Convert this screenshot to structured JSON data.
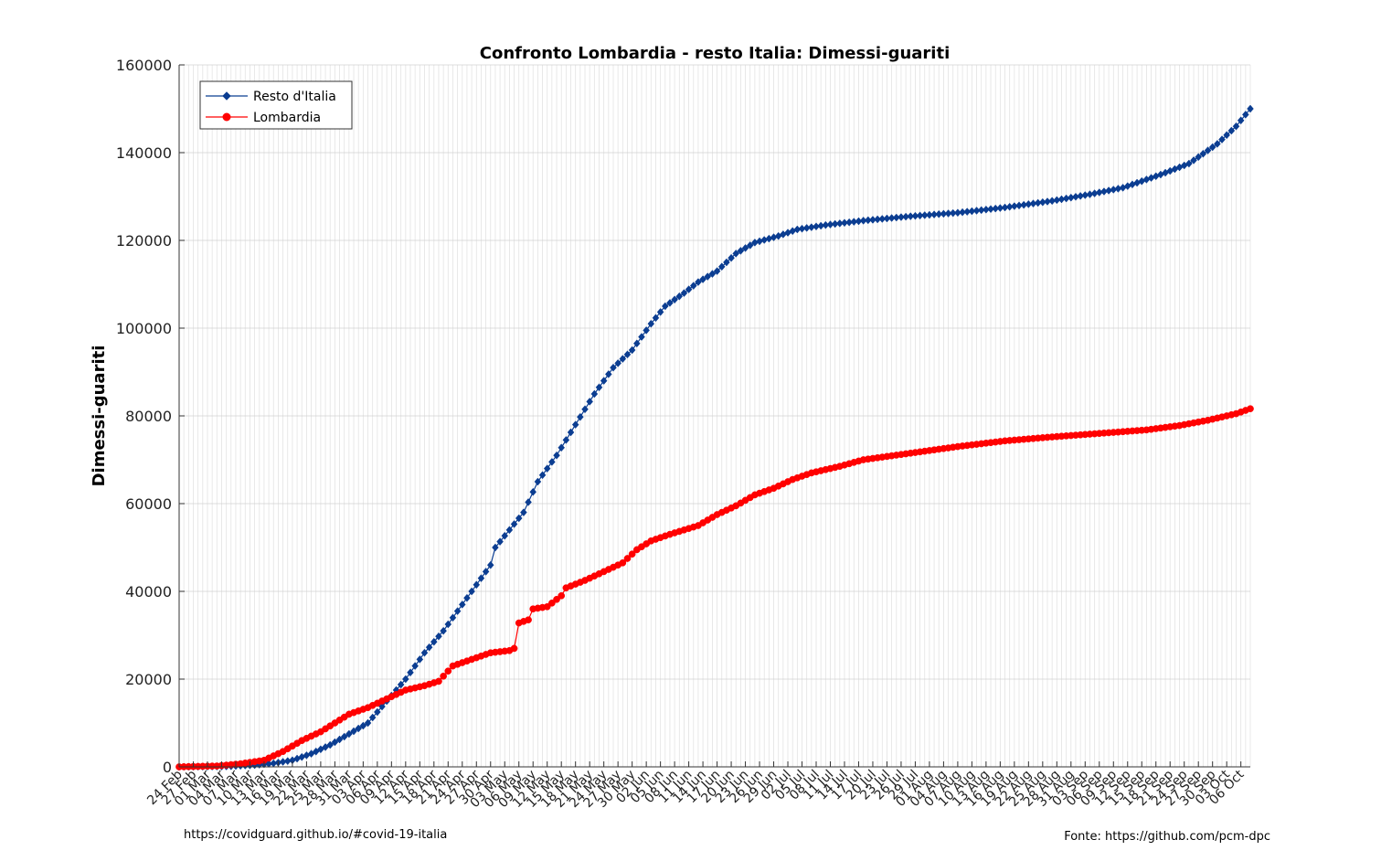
{
  "chart_data": {
    "type": "line",
    "title": "Confronto Lombardia - resto Italia: Dimessi-guariti",
    "xlabel": "",
    "ylabel": "Dimessi-guariti",
    "x_start": "2020-02-24",
    "num_days": 228,
    "ylim": [
      0,
      160000
    ],
    "yticks": [
      0,
      20000,
      40000,
      60000,
      80000,
      100000,
      120000,
      140000,
      160000
    ],
    "xtick_labels": [
      "24 Feb",
      "27 Feb",
      "01 Mar",
      "04 Mar",
      "07 Mar",
      "10 Mar",
      "13 Mar",
      "16 Mar",
      "19 Mar",
      "22 Mar",
      "25 Mar",
      "28 Mar",
      "31 Mar",
      "03 Apr",
      "06 Apr",
      "09 Apr",
      "12 Apr",
      "15 Apr",
      "18 Apr",
      "21 Apr",
      "24 Apr",
      "27 Apr",
      "30 Apr",
      "03 May",
      "06 May",
      "09 May",
      "12 May",
      "15 May",
      "18 May",
      "21 May",
      "24 May",
      "27 May",
      "30 May",
      "02 Jun",
      "05 Jun",
      "08 Jun",
      "11 Jun",
      "14 Jun",
      "17 Jun",
      "20 Jun",
      "23 Jun",
      "26 Jun",
      "29 Jun",
      "02 Jul",
      "05 Jul",
      "08 Jul",
      "11 Jul",
      "14 Jul",
      "17 Jul",
      "20 Jul",
      "23 Jul",
      "26 Jul",
      "29 Jul",
      "01 Aug",
      "04 Aug",
      "07 Aug",
      "10 Aug",
      "13 Aug",
      "16 Aug",
      "19 Aug",
      "22 Aug",
      "25 Aug",
      "28 Aug",
      "31 Aug",
      "03 Sep",
      "06 Sep",
      "09 Sep",
      "12 Sep",
      "15 Sep",
      "18 Sep",
      "21 Sep",
      "24 Sep",
      "27 Sep",
      "30 Sep",
      "03 Oct",
      "06 Oct"
    ],
    "grid": true,
    "legend_position": "top-left",
    "series": [
      {
        "name": "Resto d'Italia",
        "color": "#0b3d91",
        "marker": "diamond",
        "keypoints": [
          [
            0,
            0
          ],
          [
            10,
            100
          ],
          [
            16,
            400
          ],
          [
            20,
            800
          ],
          [
            24,
            1500
          ],
          [
            28,
            3000
          ],
          [
            32,
            5000
          ],
          [
            36,
            7500
          ],
          [
            40,
            10000
          ],
          [
            44,
            15000
          ],
          [
            48,
            20000
          ],
          [
            52,
            26000
          ],
          [
            56,
            31000
          ],
          [
            60,
            37000
          ],
          [
            64,
            43000
          ],
          [
            66,
            46000
          ],
          [
            67,
            50000
          ],
          [
            70,
            54000
          ],
          [
            73,
            58000
          ],
          [
            76,
            65000
          ],
          [
            80,
            71000
          ],
          [
            84,
            78000
          ],
          [
            88,
            85000
          ],
          [
            92,
            91000
          ],
          [
            96,
            95000
          ],
          [
            100,
            101000
          ],
          [
            103,
            105000
          ],
          [
            107,
            108000
          ],
          [
            110,
            110500
          ],
          [
            114,
            113000
          ],
          [
            118,
            117000
          ],
          [
            122,
            119500
          ],
          [
            127,
            121000
          ],
          [
            131,
            122500
          ],
          [
            137,
            123500
          ],
          [
            145,
            124500
          ],
          [
            155,
            125500
          ],
          [
            165,
            126300
          ],
          [
            175,
            127500
          ],
          [
            185,
            129000
          ],
          [
            193,
            130500
          ],
          [
            200,
            132000
          ],
          [
            208,
            135000
          ],
          [
            214,
            137500
          ],
          [
            220,
            142000
          ],
          [
            224,
            146000
          ],
          [
            227,
            150000
          ],
          [
            232,
            154500
          ]
        ]
      },
      {
        "name": "Lombardia",
        "color": "#ff0000",
        "marker": "circle",
        "keypoints": [
          [
            0,
            0
          ],
          [
            8,
            200
          ],
          [
            13,
            700
          ],
          [
            18,
            1500
          ],
          [
            22,
            3500
          ],
          [
            26,
            6000
          ],
          [
            30,
            8000
          ],
          [
            33,
            10000
          ],
          [
            36,
            12000
          ],
          [
            40,
            13500
          ],
          [
            44,
            15500
          ],
          [
            48,
            17500
          ],
          [
            52,
            18500
          ],
          [
            55,
            19500
          ],
          [
            58,
            23000
          ],
          [
            62,
            24500
          ],
          [
            66,
            26000
          ],
          [
            70,
            26500
          ],
          [
            71,
            27000
          ],
          [
            72,
            32800
          ],
          [
            74,
            33500
          ],
          [
            75,
            36000
          ],
          [
            78,
            36500
          ],
          [
            81,
            39000
          ],
          [
            82,
            40800
          ],
          [
            86,
            42500
          ],
          [
            90,
            44500
          ],
          [
            94,
            46500
          ],
          [
            97,
            49500
          ],
          [
            100,
            51500
          ],
          [
            104,
            53000
          ],
          [
            107,
            54000
          ],
          [
            110,
            55000
          ],
          [
            114,
            57500
          ],
          [
            118,
            59500
          ],
          [
            122,
            62000
          ],
          [
            126,
            63500
          ],
          [
            130,
            65500
          ],
          [
            134,
            67000
          ],
          [
            140,
            68500
          ],
          [
            145,
            70000
          ],
          [
            155,
            71500
          ],
          [
            165,
            73000
          ],
          [
            175,
            74300
          ],
          [
            185,
            75200
          ],
          [
            195,
            76000
          ],
          [
            205,
            76800
          ],
          [
            212,
            77800
          ],
          [
            218,
            79000
          ],
          [
            224,
            80500
          ],
          [
            228,
            82000
          ],
          [
            232,
            82800
          ]
        ]
      }
    ]
  },
  "footer": {
    "left": "https://covidguard.github.io/#covid-19-italia",
    "right": "Fonte: https://github.com/pcm-dpc"
  }
}
